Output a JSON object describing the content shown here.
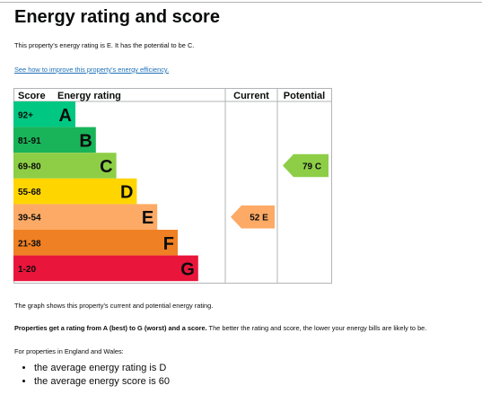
{
  "page": {
    "title": "Energy rating and score",
    "summary": "This property’s energy rating is E. It has the potential to be C.",
    "improve_link": "See how to improve this property’s energy efficiency.",
    "graph_note": "The graph shows this property’s current and potential energy rating.",
    "ratings_note_bold": "Properties get a rating from A (best) to G (worst) and a score.",
    "ratings_note_rest": " The better the rating and score, the lower your energy bills are likely to be.",
    "region_note": "For properties in England and Wales:",
    "facts": [
      "the average energy rating is D",
      "the average energy score is 60"
    ]
  },
  "chart_data": {
    "type": "bar",
    "headers": {
      "score": "Score",
      "rating": "Energy rating",
      "current": "Current",
      "potential": "Potential"
    },
    "bands": [
      {
        "range": "92+",
        "letter": "A",
        "color": "#00c781",
        "text_color": "#0b0c0c"
      },
      {
        "range": "81-91",
        "letter": "B",
        "color": "#19b459",
        "text_color": "#0b0c0c"
      },
      {
        "range": "69-80",
        "letter": "C",
        "color": "#8dce46",
        "text_color": "#0b0c0c"
      },
      {
        "range": "55-68",
        "letter": "D",
        "color": "#ffd500",
        "text_color": "#0b0c0c"
      },
      {
        "range": "39-54",
        "letter": "E",
        "color": "#fcaa65",
        "text_color": "#0b0c0c"
      },
      {
        "range": "21-38",
        "letter": "F",
        "color": "#ef8023",
        "text_color": "#0b0c0c"
      },
      {
        "range": "1-20",
        "letter": "G",
        "color": "#e9153b",
        "text_color": "#0b0c0c"
      }
    ],
    "current": {
      "score": 52,
      "letter": "E",
      "label": "52 E",
      "color": "#fcaa65"
    },
    "potential": {
      "score": 79,
      "letter": "C",
      "label": "79 C",
      "color": "#8dce46"
    }
  }
}
